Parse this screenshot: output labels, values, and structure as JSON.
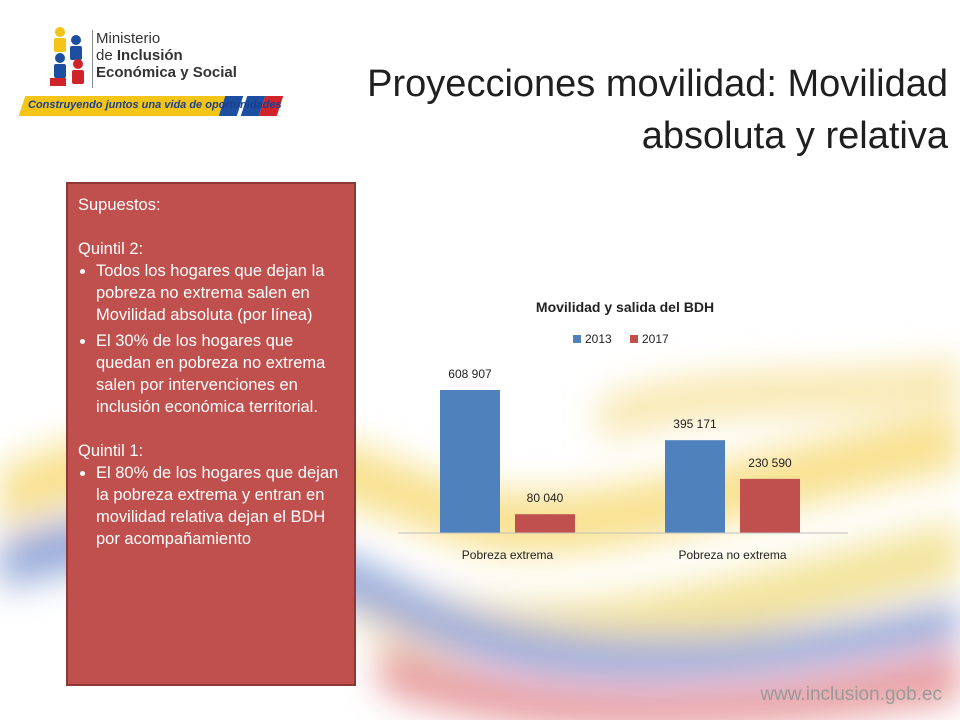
{
  "header": {
    "title": "Proyecciones movilidad: Movilidad absoluta y relativa"
  },
  "logo": {
    "line1": "Ministerio",
    "line2_prefix": "de ",
    "line2_bold": "Inclusión",
    "line3": "Económica y Social",
    "tagline": "Construyendo juntos una vida de oportunidades"
  },
  "supuestos": {
    "heading": "Supuestos:",
    "q2_label": "Quintil 2:",
    "q2_bullets": [
      "Todos los hogares que dejan la pobreza no extrema salen en Movilidad absoluta (por línea)",
      "El 30% de los hogares que quedan en pobreza no extrema salen por intervenciones en inclusión económica territorial."
    ],
    "q1_label": "Quintil 1:",
    "q1_bullets": [
      "El 80% de los hogares que dejan la pobreza extrema y entran en movilidad relativa dejan el BDH por acompañamiento"
    ]
  },
  "colors": {
    "series_2013": "#4f81bd",
    "series_2017": "#c0504d",
    "box_fill": "#c0504d"
  },
  "chart_data": {
    "type": "bar",
    "title": "Movilidad y salida del BDH",
    "categories": [
      "Pobreza extrema",
      "Pobreza no extrema"
    ],
    "series": [
      {
        "name": "2013",
        "values": [
          608907,
          395171
        ],
        "labels": [
          "608 907",
          "395 171"
        ]
      },
      {
        "name": "2017",
        "values": [
          80040,
          230590
        ],
        "labels": [
          "80 040",
          "230 590"
        ]
      }
    ],
    "ylim": [
      0,
      608907
    ],
    "legend": "top",
    "grid": false
  },
  "footer": {
    "url": "www.inclusion.gob.ec"
  }
}
